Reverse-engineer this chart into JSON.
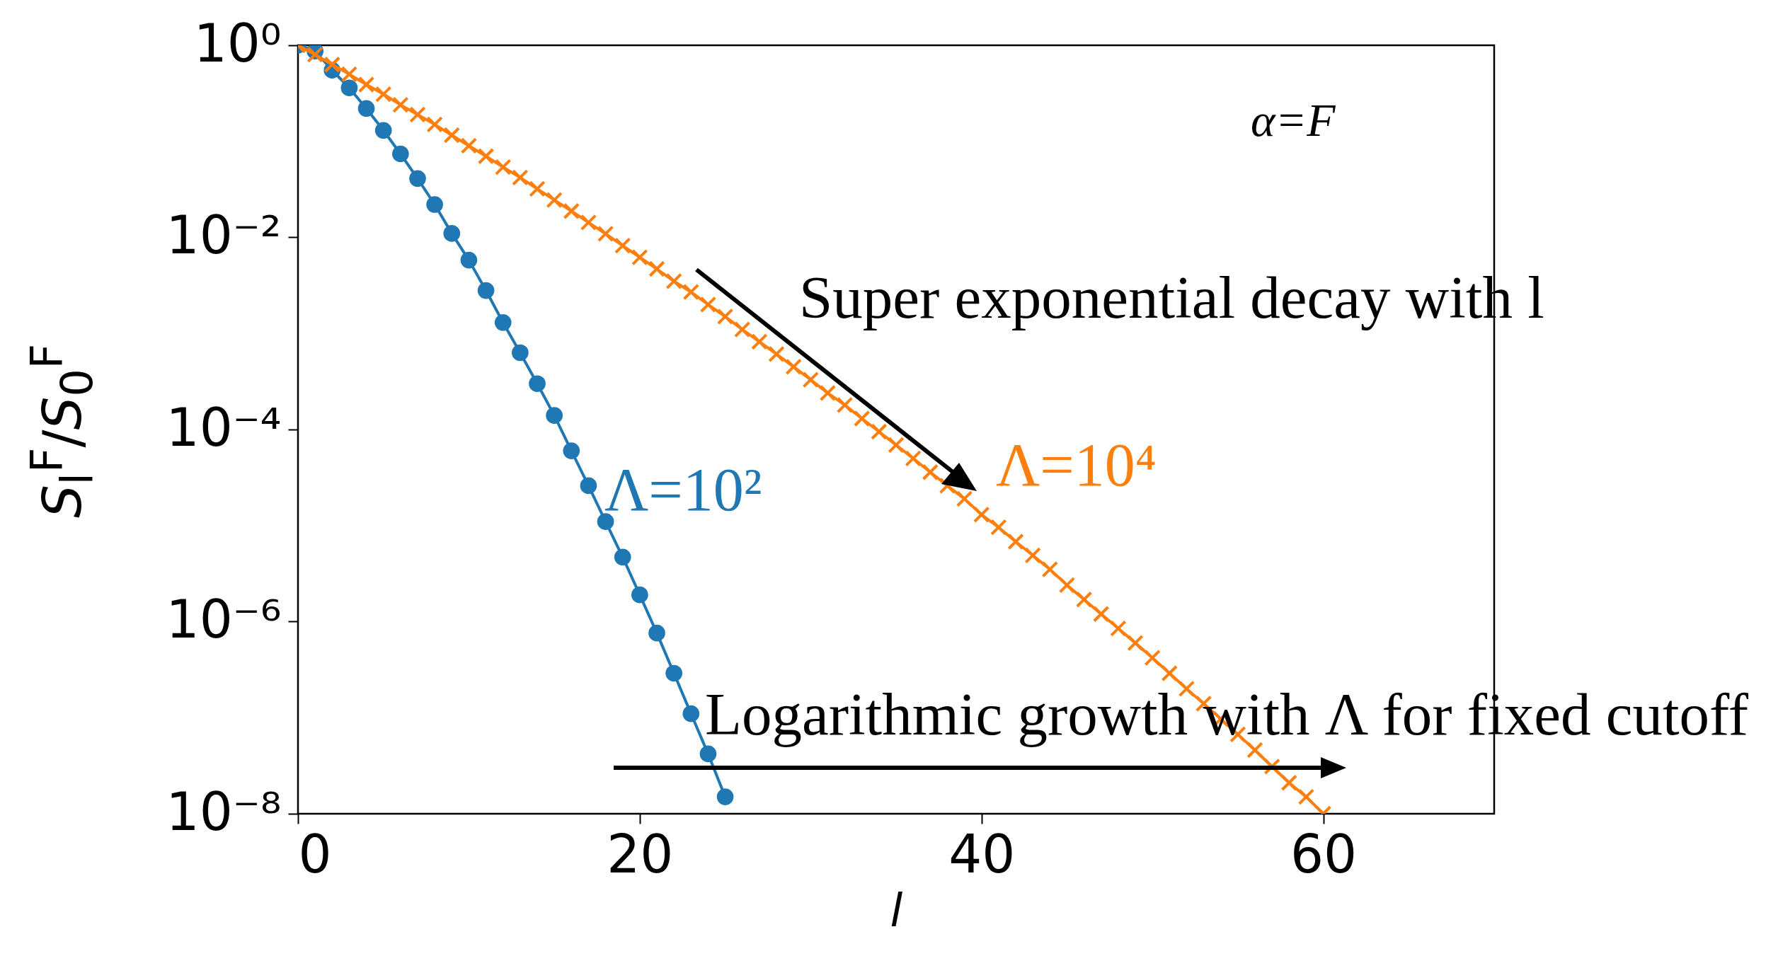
{
  "chart_data": {
    "type": "line",
    "xlabel": "l",
    "ylabel": "S$_{l}$$^{F}$/S$_{0}$$^{F}$",
    "log": "y",
    "grid": false,
    "xlim": [
      0,
      70
    ],
    "xticks": [
      0,
      20,
      40,
      60
    ],
    "ylim": [
      1e-08,
      1
    ],
    "yticks": [
      {
        "value": 1,
        "label": "10⁰"
      },
      {
        "value": 0.01,
        "label": "10⁻²"
      },
      {
        "value": 0.0001,
        "label": "10⁻⁴"
      },
      {
        "value": 1e-06,
        "label": "10⁻⁶"
      },
      {
        "value": 1e-08,
        "label": "10⁻⁸"
      }
    ],
    "series": [
      {
        "name": "Λ=10²",
        "color": "#1f77b4",
        "marker": "circle",
        "x": [
          0,
          1,
          2,
          3,
          4,
          5,
          6,
          7,
          8,
          9,
          10,
          11,
          12,
          13,
          14,
          15,
          16,
          17,
          18,
          19,
          20,
          21,
          22,
          23,
          24,
          25
        ],
        "values": [
          1,
          0.87,
          0.55,
          0.36,
          0.22,
          0.13,
          0.074,
          0.041,
          0.022,
          0.011,
          0.0058,
          0.0028,
          0.0013,
          0.00063,
          0.0003,
          0.00014,
          6e-05,
          2.6e-05,
          1.1e-05,
          4.7e-06,
          1.9e-06,
          7.6e-07,
          2.9e-07,
          1.1e-07,
          4.2e-08,
          1.5e-08
        ]
      },
      {
        "name": "Λ=10⁴",
        "color": "#ff7f0e",
        "marker": "cross",
        "x": [
          0,
          1,
          2,
          3,
          4,
          5,
          6,
          7,
          8,
          9,
          10,
          11,
          12,
          13,
          14,
          15,
          16,
          17,
          18,
          19,
          20,
          21,
          22,
          23,
          24,
          25,
          26,
          27,
          28,
          29,
          30,
          31,
          32,
          33,
          34,
          35,
          36,
          37,
          38,
          39,
          40,
          41,
          42,
          43,
          44,
          45,
          46,
          47,
          48,
          49,
          50,
          51,
          52,
          53,
          54,
          55,
          56,
          57,
          58,
          59,
          60
        ],
        "values": [
          1,
          0.8,
          0.63,
          0.5,
          0.39,
          0.31,
          0.24,
          0.19,
          0.15,
          0.116,
          0.09,
          0.07,
          0.054,
          0.042,
          0.032,
          0.0245,
          0.0188,
          0.0143,
          0.0109,
          0.0082,
          0.0062,
          0.0047,
          0.0035,
          0.0027,
          0.002,
          0.0015,
          0.0011,
          0.00082,
          0.00061,
          0.00045,
          0.00033,
          0.00024,
          0.00018,
          0.00013,
          9.5e-05,
          6.9e-05,
          5e-05,
          3.6e-05,
          2.6e-05,
          1.9e-05,
          1.3e-05,
          9.6e-06,
          6.8e-06,
          4.9e-06,
          3.5e-06,
          2.4e-06,
          1.7e-06,
          1.2e-06,
          8.5e-07,
          6e-07,
          4.2e-07,
          2.9e-07,
          2e-07,
          1.4e-07,
          9.7e-08,
          6.7e-08,
          4.6e-08,
          3.1e-08,
          2.1e-08,
          1.5e-08,
          1e-08
        ]
      }
    ],
    "annotations": [
      "α=F",
      "Super exponential decay with l",
      "Logarithmic growth with Λ for fixed cutoff"
    ]
  }
}
